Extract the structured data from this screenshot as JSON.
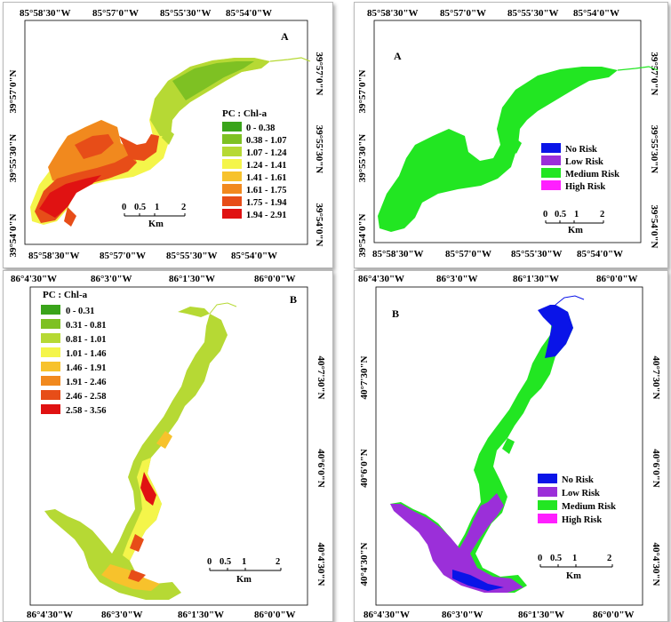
{
  "colors": {
    "pc_scale": [
      "#3aa41a",
      "#7ec123",
      "#b6d934",
      "#f4f54a",
      "#f7c22c",
      "#f1891e",
      "#e74d18",
      "#e01212"
    ],
    "risk_scale": [
      "#0a14e8",
      "#9b2fd9",
      "#22e622",
      "#ff1fff"
    ]
  },
  "panels": [
    {
      "id": "top-left",
      "label": "A",
      "top_coords": [
        "85°58'30\"W",
        "85°57'0\"W",
        "85°55'30\"W",
        "85°54'0\"W"
      ],
      "bottom_coords": [
        "85°58'30\"W",
        "85°57'0\"W",
        "85°55'30\"W",
        "85°54'0\"W"
      ],
      "left_coords": [
        "39°57'0\"N",
        "39°55'30\"N",
        "39°54'0\"N"
      ],
      "right_coords": [
        "39°57'0\"N",
        "39°55'30\"N",
        "39°54'0\"N"
      ],
      "legend_title": "PC : Chl-a",
      "legend": [
        "0 - 0.38",
        "0.38 - 1.07",
        "1.07 - 1.24",
        "1.24 - 1.41",
        "1.41 - 1.61",
        "1.61 - 1.75",
        "1.75 - 1.94",
        "1.94 - 2.91"
      ],
      "scale_ticks": [
        "0",
        "0.5",
        "1",
        "2"
      ],
      "scale_unit": "Km"
    },
    {
      "id": "top-right",
      "label": "A",
      "top_coords": [
        "85°58'30\"W",
        "85°57'0\"W",
        "85°55'30\"W",
        "85°54'0\"W"
      ],
      "bottom_coords": [
        "85°58'30\"W",
        "85°57'0\"W",
        "85°55'30\"W",
        "85°54'0\"W"
      ],
      "left_coords": [
        "39°57'0\"N",
        "39°55'30\"N",
        "39°54'0\"N"
      ],
      "right_coords": [
        "39°57'0\"N",
        "39°55'30\"N",
        "39°54'0\"N"
      ],
      "legend": [
        "No Risk",
        "Low Risk",
        "Medium Risk",
        "High Risk"
      ],
      "scale_ticks": [
        "0",
        "0.5",
        "1",
        "2"
      ],
      "scale_unit": "Km"
    },
    {
      "id": "bottom-left",
      "label": "B",
      "top_coords": [
        "86°4'30\"W",
        "86°3'0\"W",
        "86°1'30\"W",
        "86°0'0\"W"
      ],
      "bottom_coords": [
        "86°4'30\"W",
        "86°3'0\"W",
        "86°1'30\"W",
        "86°0'0\"W"
      ],
      "right_coords": [
        "40°7'30\"N",
        "40°6'0\"N",
        "40°4'30\"N"
      ],
      "legend_title": "PC : Chl-a",
      "legend": [
        "0 - 0.31",
        "0.31 - 0.81",
        "0.81 - 1.01",
        "1.01 - 1.46",
        "1.46 - 1.91",
        "1.91 - 2.46",
        "2.46 - 2.58",
        "2.58 - 3.56"
      ],
      "scale_ticks": [
        "0",
        "0.5",
        "1",
        "2"
      ],
      "scale_unit": "Km"
    },
    {
      "id": "bottom-right",
      "label": "B",
      "top_coords": [
        "86°4'30\"W",
        "86°3'0\"W",
        "86°1'30\"W",
        "86°0'0\"W"
      ],
      "bottom_coords": [
        "86°4'30\"W",
        "86°3'0\"W",
        "86°1'30\"W",
        "86°0'0\"W"
      ],
      "left_coords": [
        "40°7'30\"N",
        "40°6'0\"N",
        "40°4'30\"N"
      ],
      "right_coords": [
        "40°7'30\"N",
        "40°6'0\"N",
        "40°4'30\"N"
      ],
      "legend": [
        "No Risk",
        "Low Risk",
        "Medium Risk",
        "High Risk"
      ],
      "scale_ticks": [
        "0",
        "0.5",
        "1",
        "2"
      ],
      "scale_unit": "Km"
    }
  ]
}
